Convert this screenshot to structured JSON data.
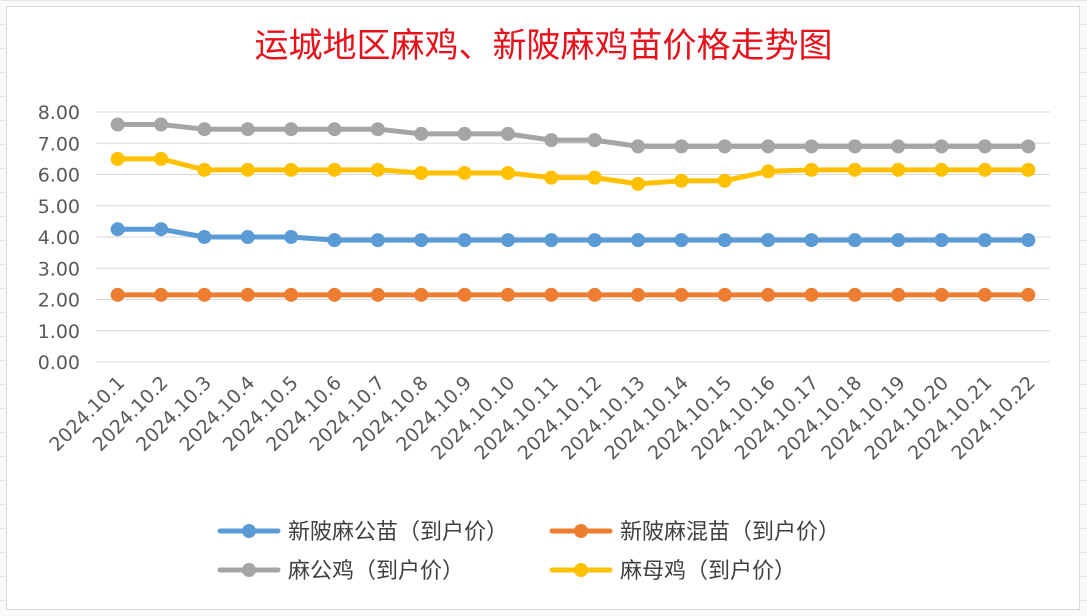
{
  "chart_data": {
    "type": "line",
    "title": "运城地区麻鸡、新陂麻鸡苗价格走势图",
    "xlabel": "",
    "ylabel": "",
    "ylim": [
      0,
      8
    ],
    "y_ticks": [
      "0.00",
      "1.00",
      "2.00",
      "3.00",
      "4.00",
      "5.00",
      "6.00",
      "7.00",
      "8.00"
    ],
    "grid": true,
    "legend_position": "bottom",
    "categories": [
      "2024.10.1",
      "2024.10.2",
      "2024.10.3",
      "2024.10.4",
      "2024.10.5",
      "2024.10.6",
      "2024.10.7",
      "2024.10.8",
      "2024.10.9",
      "2024.10.10",
      "2024.10.11",
      "2024.10.12",
      "2024.10.13",
      "2024.10.14",
      "2024.10.15",
      "2024.10.16",
      "2024.10.17",
      "2024.10.18",
      "2024.10.19",
      "2024.10.20",
      "2024.10.21",
      "2024.10.22"
    ],
    "series": [
      {
        "name": "新陂麻公苗（到户价）",
        "color": "#5b9bd5",
        "values": [
          4.25,
          4.25,
          4.0,
          4.0,
          4.0,
          3.9,
          3.9,
          3.9,
          3.9,
          3.9,
          3.9,
          3.9,
          3.9,
          3.9,
          3.9,
          3.9,
          3.9,
          3.9,
          3.9,
          3.9,
          3.9,
          3.9
        ]
      },
      {
        "name": "新陂麻混苗（到户价）",
        "color": "#ed7d31",
        "values": [
          2.15,
          2.15,
          2.15,
          2.15,
          2.15,
          2.15,
          2.15,
          2.15,
          2.15,
          2.15,
          2.15,
          2.15,
          2.15,
          2.15,
          2.15,
          2.15,
          2.15,
          2.15,
          2.15,
          2.15,
          2.15,
          2.15
        ]
      },
      {
        "name": "麻公鸡（到户价）",
        "color": "#a5a5a5",
        "values": [
          7.6,
          7.6,
          7.45,
          7.45,
          7.45,
          7.45,
          7.45,
          7.3,
          7.3,
          7.3,
          7.1,
          7.1,
          6.9,
          6.9,
          6.9,
          6.9,
          6.9,
          6.9,
          6.9,
          6.9,
          6.9,
          6.9
        ]
      },
      {
        "name": "麻母鸡（到户价）",
        "color": "#ffc000",
        "values": [
          6.5,
          6.5,
          6.15,
          6.15,
          6.15,
          6.15,
          6.15,
          6.05,
          6.05,
          6.05,
          5.9,
          5.9,
          5.7,
          5.8,
          5.8,
          6.1,
          6.15,
          6.15,
          6.15,
          6.15,
          6.15,
          6.15
        ]
      }
    ]
  }
}
